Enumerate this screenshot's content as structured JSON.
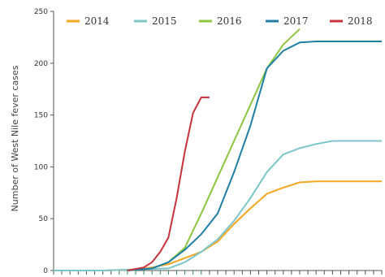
{
  "chart_data": {
    "type": "line",
    "ylabel": "Number of West Nile fever cases",
    "xlabel": "",
    "ylim": [
      0,
      250
    ],
    "yticks": [
      0,
      50,
      100,
      150,
      200,
      250
    ],
    "x_tick_count": 41,
    "grid": false,
    "legend_position": "top",
    "series": [
      {
        "name": "2014",
        "color": "#f5a623",
        "x": [
          0,
          6,
          10,
          12,
          14,
          16,
          18,
          20,
          22,
          24,
          26,
          28,
          30,
          32,
          34,
          40
        ],
        "y": [
          0,
          0,
          1,
          3,
          6,
          12,
          18,
          28,
          45,
          60,
          74,
          80,
          85,
          86,
          86,
          86
        ]
      },
      {
        "name": "2015",
        "color": "#7cc6c9",
        "x": [
          0,
          6,
          14,
          16,
          18,
          20,
          22,
          24,
          26,
          28,
          30,
          32,
          34,
          40
        ],
        "y": [
          0,
          0,
          2,
          8,
          18,
          30,
          48,
          70,
          95,
          112,
          118,
          122,
          125,
          125
        ]
      },
      {
        "name": "2016",
        "color": "#8cc63f",
        "x": [
          9,
          12,
          14,
          16,
          18,
          20,
          22,
          24,
          26,
          28,
          30
        ],
        "y": [
          0,
          2,
          8,
          22,
          55,
          90,
          125,
          160,
          195,
          218,
          233
        ]
      },
      {
        "name": "2017",
        "color": "#1f7fa5",
        "x": [
          9,
          12,
          14,
          16,
          18,
          20,
          22,
          24,
          26,
          28,
          30,
          32,
          34,
          40
        ],
        "y": [
          0,
          2,
          8,
          20,
          35,
          55,
          95,
          140,
          195,
          212,
          220,
          221,
          221,
          221
        ]
      },
      {
        "name": "2018",
        "color": "#c8323c",
        "x": [
          9,
          11,
          12,
          13,
          14,
          15,
          16,
          17
        ],
        "y": [
          0,
          3,
          8,
          18,
          32,
          70,
          115,
          152
        ]
      }
    ],
    "series_2018_tail": {
      "x": [
        17,
        18,
        19
      ],
      "y": [
        152,
        167,
        167
      ]
    },
    "axis_color": "#2e8b57"
  }
}
